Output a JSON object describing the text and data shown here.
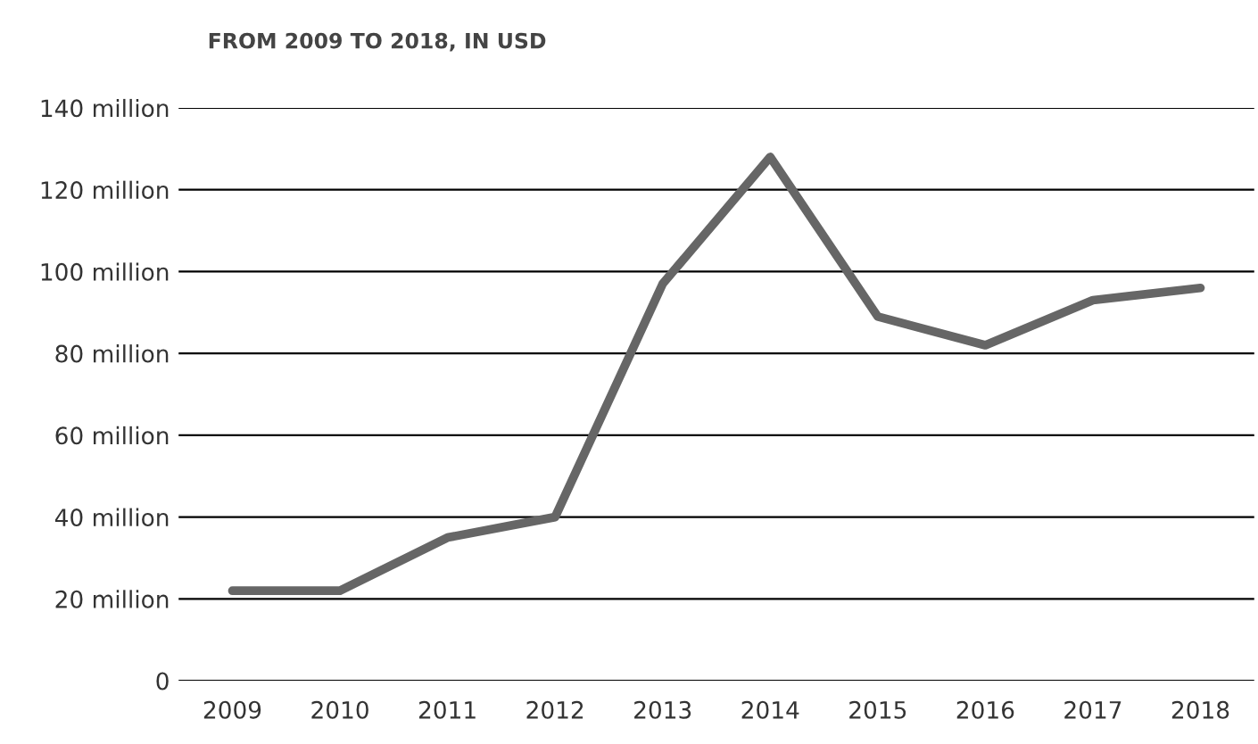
{
  "chart_data": {
    "type": "line",
    "title": "FROM 2009 TO 2018, IN USD",
    "categories": [
      "2009",
      "2010",
      "2011",
      "2012",
      "2013",
      "2014",
      "2015",
      "2016",
      "2017",
      "2018"
    ],
    "series": [
      {
        "color": "#666666",
        "values": [
          22,
          22,
          35,
          40,
          97,
          128,
          89,
          82,
          93,
          96
        ]
      }
    ],
    "ylim": [
      0,
      140
    ],
    "yticks": [
      {
        "value": 0,
        "label": "0"
      },
      {
        "value": 20,
        "label": "20 million"
      },
      {
        "value": 40,
        "label": "40 million"
      },
      {
        "value": 60,
        "label": "60 million"
      },
      {
        "value": 80,
        "label": "80 million"
      },
      {
        "value": 100,
        "label": "100 million"
      },
      {
        "value": 120,
        "label": "120 million"
      },
      {
        "value": 140,
        "label": "140 million"
      }
    ],
    "grid": "y",
    "marker": "none",
    "line_style": "solid"
  }
}
